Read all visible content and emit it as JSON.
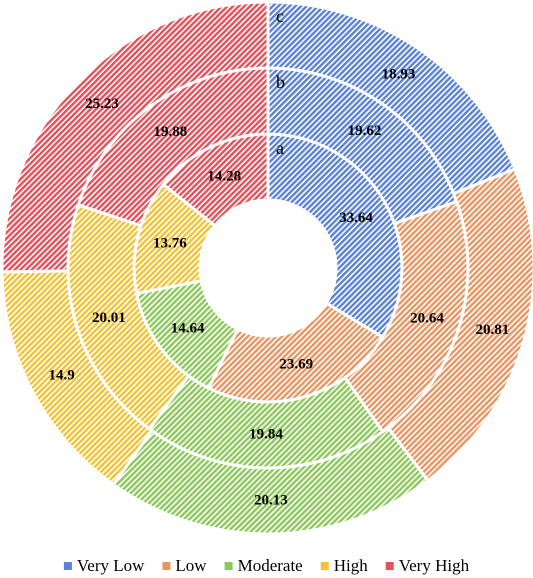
{
  "chart_data": {
    "type": "multi-donut",
    "categories": [
      "Very Low",
      "Low",
      "Moderate",
      "High",
      "Very High"
    ],
    "colors": [
      "#5b82d6",
      "#e99561",
      "#8cc85a",
      "#f3c233",
      "#e5505b"
    ],
    "series": [
      {
        "name": "a",
        "values": [
          33.64,
          23.69,
          14.64,
          13.76,
          14.28
        ]
      },
      {
        "name": "b",
        "values": [
          19.62,
          20.64,
          19.84,
          20.01,
          19.88
        ]
      },
      {
        "name": "c",
        "values": [
          18.93,
          20.81,
          20.13,
          14.9,
          25.23
        ]
      }
    ]
  }
}
